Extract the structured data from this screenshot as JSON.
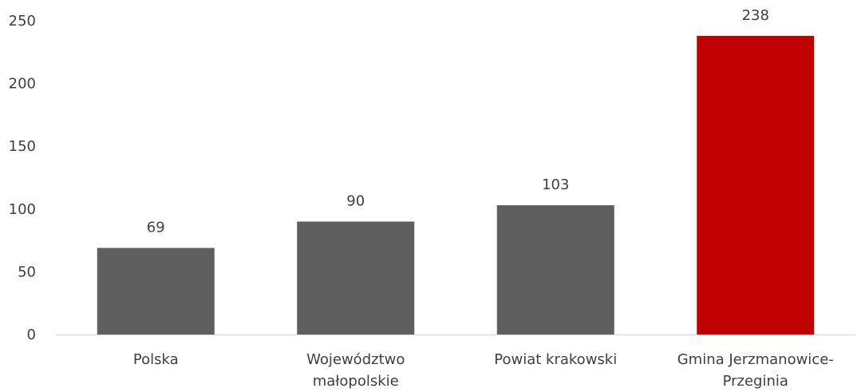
{
  "chart_data": {
    "type": "bar",
    "categories": [
      [
        "Polska"
      ],
      [
        "Województwo",
        "małopolskie"
      ],
      [
        "Powiat krakowski"
      ],
      [
        "Gmina Jerzmanowice-",
        "Przeginia"
      ]
    ],
    "values": [
      69,
      90,
      103,
      238
    ],
    "data_labels": [
      "69",
      "90",
      "103",
      "238"
    ],
    "y_ticks": [
      "0",
      "50",
      "100",
      "150",
      "200",
      "250"
    ],
    "ylim": [
      0,
      250
    ],
    "grid": false,
    "legend": "none",
    "colors": {
      "default_bar": "#5f5f5f",
      "highlight_bar": "#c00000",
      "axis": "#d9d9d9",
      "text": "#404040"
    },
    "highlight_index": 3
  }
}
